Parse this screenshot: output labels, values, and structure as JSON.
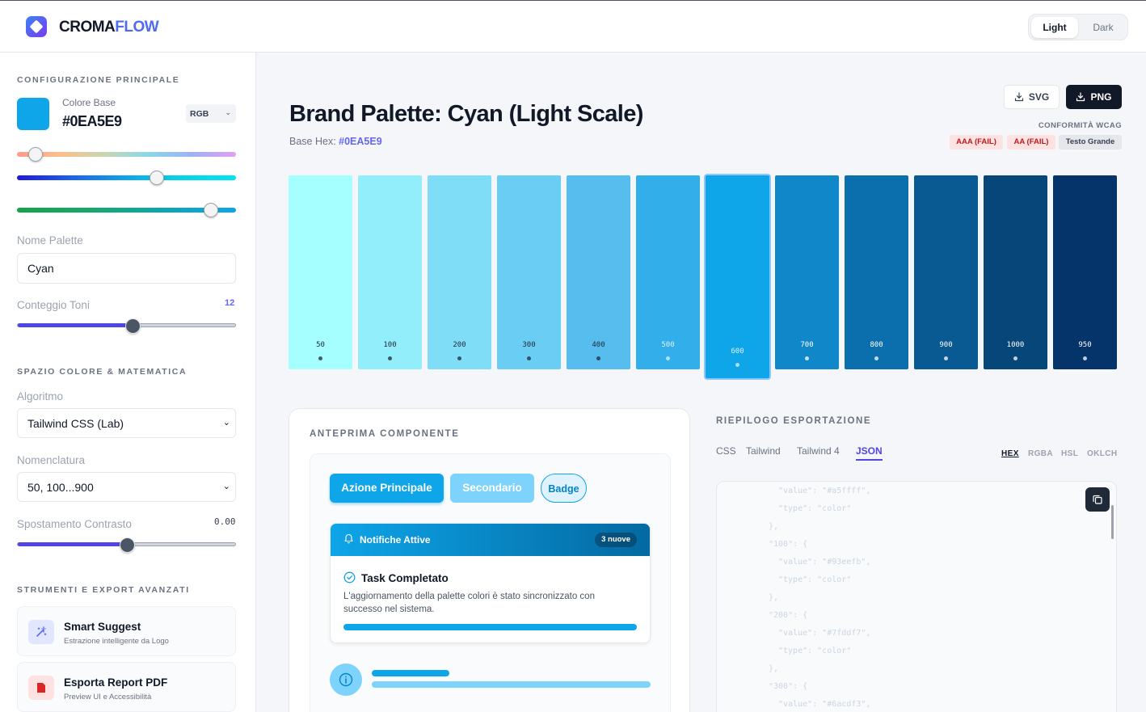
{
  "brand": {
    "part1": "CROMA",
    "part2": "FLOW"
  },
  "theme": {
    "light_label": "Light",
    "dark_label": "Dark",
    "selected": "Light"
  },
  "sidebar": {
    "section_main": "CONFIGURAZIONE PRINCIPALE",
    "base_color_label": "Colore Base",
    "base_color_value": "#0EA5E9",
    "base_color": "#0ea5e9",
    "color_mode": "RGB",
    "palette_name_label": "Nome Palette",
    "palette_name_value": "Cyan",
    "tone_count_label": "Conteggio Toni",
    "tone_count_value": "12",
    "section_math": "SPAZIO COLORE & MATEMATICA",
    "algorithm_label": "Algoritmo",
    "algorithm_value": "Tailwind CSS (Lab)",
    "naming_label": "Nomenclatura",
    "naming_value": "50, 100...900",
    "contrast_label": "Spostamento Contrasto",
    "contrast_value": "0.00",
    "section_tools": "STRUMENTI E EXPORT AVANZATI",
    "tools": [
      {
        "title": "Smart Suggest",
        "subtitle": "Estrazione intelligente da Logo",
        "icon": "magic-wand-icon"
      },
      {
        "title": "Esporta Report PDF",
        "subtitle": "Preview UI e Accessibilità",
        "icon": "pdf-icon"
      }
    ]
  },
  "main": {
    "title": "Brand Palette: Cyan (Light Scale)",
    "base_hex_label": "Base Hex:",
    "base_hex_value": "#0EA5E9",
    "export_svg": "SVG",
    "export_png": "PNG",
    "wcag_label": "CONFORMITÀ WCAG",
    "wcag_badges": [
      "AAA (FAIL)",
      "AA (FAIL)",
      "Testo Grande"
    ]
  },
  "palette": [
    {
      "label": "50",
      "color": "#a5ffff",
      "text": "#1f2937"
    },
    {
      "label": "100",
      "color": "#93eefb",
      "text": "#1f2937"
    },
    {
      "label": "200",
      "color": "#7fddf7",
      "text": "#1f2937"
    },
    {
      "label": "300",
      "color": "#6acdf3",
      "text": "#1f2937"
    },
    {
      "label": "400",
      "color": "#56bdee",
      "text": "#1f2937"
    },
    {
      "label": "500",
      "color": "#32aeea",
      "text": "#e0f2fe"
    },
    {
      "label": "600",
      "color": "#0ea5e9",
      "text": "#e0f2fe",
      "selected": true
    },
    {
      "label": "700",
      "color": "#0f87c8",
      "text": "#ffffff"
    },
    {
      "label": "800",
      "color": "#0c6fad",
      "text": "#ffffff"
    },
    {
      "label": "900",
      "color": "#095a92",
      "text": "#ffffff"
    },
    {
      "label": "1000",
      "color": "#064679",
      "text": "#ffffff"
    },
    {
      "label": "950",
      "color": "#04346a",
      "text": "#ffffff"
    }
  ],
  "preview": {
    "heading": "ANTEPRIMA COMPONENTE",
    "btn_primary": "Azione Principale",
    "btn_secondary": "Secondario",
    "btn_badge": "Badge",
    "notif_title": "Notifiche Attive",
    "notif_badge": "3 nuove",
    "task_title": "Task Completato",
    "task_desc": "L'aggiornamento della palette colori è stato sincronizzato con successo nel sistema.",
    "progress": 1.0
  },
  "export": {
    "heading": "RIEPILOGO ESPORTAZIONE",
    "tabs": [
      "CSS",
      "Tailwind",
      "Tailwind 4",
      "JSON"
    ],
    "active_tab": "JSON",
    "formats": [
      "HEX",
      "RGBA",
      "HSL",
      "OKLCH"
    ],
    "active_format": "HEX",
    "code_lines": [
      "\"value\": \"#a5ffff\",",
      "\"type\": \"color\"",
      "},",
      "\"100\": {",
      "\"value\": \"#93eefb\",",
      "\"type\": \"color\"",
      "},",
      "\"200\": {",
      "\"value\": \"#7fddf7\",",
      "\"type\": \"color\"",
      "},",
      "\"300\": {",
      "\"value\": \"#6acdf3\","
    ]
  }
}
